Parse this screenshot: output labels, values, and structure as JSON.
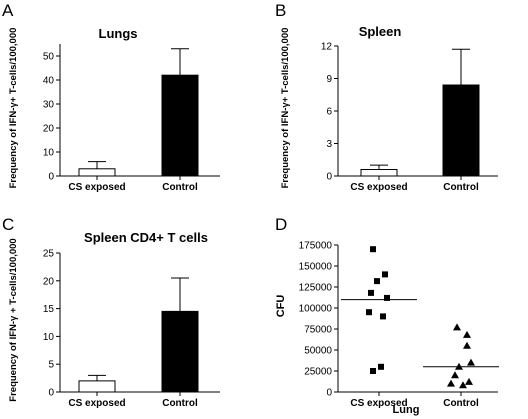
{
  "figure": {
    "panel_letters": [
      "A",
      "B",
      "C",
      "D"
    ]
  },
  "chart_data": [
    {
      "type": "bar",
      "panel": "A",
      "title": "Lungs",
      "ylabel": "Frequency of IFN-γ+ T-cells/100,000",
      "xlabel": "",
      "categories": [
        "CS exposed",
        "Control"
      ],
      "values": [
        3,
        42
      ],
      "errors": [
        3,
        11
      ],
      "bar_colors": [
        "#ffffff",
        "#000000"
      ],
      "ylim": [
        0,
        55
      ],
      "yticks": [
        0,
        10,
        20,
        30,
        40,
        50
      ],
      "grid": false
    },
    {
      "type": "bar",
      "panel": "B",
      "title": "Spleen",
      "ylabel": "Frequency of IFN-γ+ T-cells/100,000",
      "xlabel": "",
      "categories": [
        "CS exposed",
        "Control"
      ],
      "values": [
        0.6,
        8.4
      ],
      "errors": [
        0.4,
        3.3
      ],
      "bar_colors": [
        "#ffffff",
        "#000000"
      ],
      "ylim": [
        0,
        12
      ],
      "yticks": [
        0,
        3,
        6,
        9,
        12
      ],
      "grid": false
    },
    {
      "type": "bar",
      "panel": "C",
      "title": "Spleen CD4+ T cells",
      "ylabel": "Frequency of IFN-γ + T-cells/100,000",
      "xlabel": "",
      "categories": [
        "CS exposed",
        "Control"
      ],
      "values": [
        2,
        14.5
      ],
      "errors": [
        1,
        6
      ],
      "bar_colors": [
        "#ffffff",
        "#000000"
      ],
      "ylim": [
        0,
        25
      ],
      "yticks": [
        0,
        5,
        10,
        15,
        20,
        25
      ],
      "grid": false
    },
    {
      "type": "scatter",
      "panel": "D",
      "title": "",
      "ylabel": "CFU",
      "xlabel": "Lung",
      "categories": [
        "CS exposed",
        "Control"
      ],
      "series": [
        {
          "category": "CS exposed",
          "marker": "square",
          "values": [
            170000,
            140000,
            132000,
            118000,
            112000,
            95000,
            90000,
            30000,
            25000
          ],
          "median": 110000
        },
        {
          "category": "Control",
          "marker": "triangle",
          "values": [
            77000,
            68000,
            55000,
            35000,
            30000,
            20000,
            12000,
            10000,
            8000
          ],
          "median": 30000
        }
      ],
      "ylim": [
        0,
        175000
      ],
      "yticks": [
        0,
        25000,
        50000,
        75000,
        100000,
        125000,
        150000,
        175000
      ],
      "grid": false
    }
  ]
}
